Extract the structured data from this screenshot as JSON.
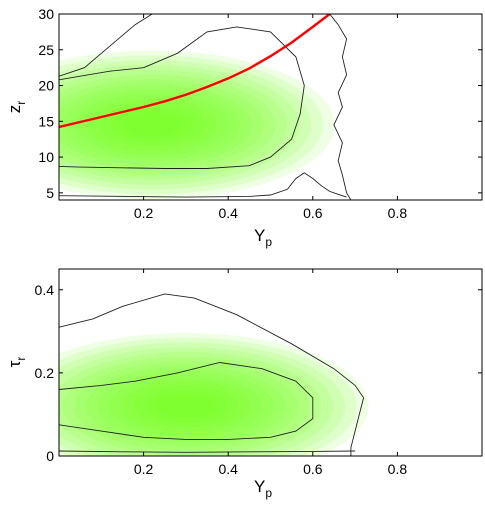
{
  "chart_data": [
    {
      "type": "heatmap",
      "xlabel": "Y",
      "xlabel_sub": "p",
      "ylabel": "z",
      "ylabel_sub": "r",
      "xlim": [
        0.0,
        1.0
      ],
      "ylim": [
        4,
        30
      ],
      "xticks": [
        0.2,
        0.4,
        0.6,
        0.8
      ],
      "xtick_labels": [
        "0.2",
        "0.4",
        "0.6",
        "0.8"
      ],
      "yticks": [
        5,
        10,
        15,
        20,
        25,
        30
      ],
      "ytick_labels": [
        "5",
        "10",
        "15",
        "20",
        "25",
        "30"
      ],
      "grid": false,
      "colors": {
        "density": "#66ff00",
        "contour": "#222222",
        "fit": "#ff0000"
      },
      "density_peak": {
        "x": 0.22,
        "y": 14.5
      },
      "contours": [
        [
          [
            0.0,
            8.7
          ],
          [
            0.05,
            8.6
          ],
          [
            0.15,
            8.5
          ],
          [
            0.25,
            8.4
          ],
          [
            0.35,
            8.4
          ],
          [
            0.45,
            8.8
          ],
          [
            0.5,
            10.0
          ],
          [
            0.55,
            12.5
          ],
          [
            0.57,
            16.0
          ],
          [
            0.58,
            20.0
          ],
          [
            0.56,
            24.0
          ],
          [
            0.5,
            27.5
          ],
          [
            0.42,
            28.2
          ],
          [
            0.35,
            27.5
          ],
          [
            0.28,
            24.5
          ],
          [
            0.2,
            22.5
          ],
          [
            0.12,
            22.0
          ],
          [
            0.05,
            21.3
          ],
          [
            0.0,
            20.8
          ]
        ],
        [
          [
            0.0,
            4.6
          ],
          [
            0.3,
            4.4
          ],
          [
            0.45,
            4.5
          ],
          [
            0.5,
            4.7
          ],
          [
            0.54,
            5.5
          ],
          [
            0.56,
            7.0
          ],
          [
            0.58,
            7.8
          ],
          [
            0.6,
            7.0
          ],
          [
            0.62,
            6.0
          ],
          [
            0.64,
            5.2
          ],
          [
            0.66,
            4.8
          ],
          [
            0.68,
            4.4
          ]
        ],
        [
          [
            0.0,
            21.3
          ],
          [
            0.06,
            22.5
          ],
          [
            0.11,
            25.0
          ],
          [
            0.18,
            28.5
          ],
          [
            0.22,
            30.0
          ]
        ],
        [
          [
            0.64,
            30.0
          ],
          [
            0.66,
            28.5
          ],
          [
            0.68,
            26.5
          ],
          [
            0.67,
            24.0
          ],
          [
            0.68,
            21.5
          ],
          [
            0.66,
            19.0
          ],
          [
            0.67,
            17.0
          ],
          [
            0.65,
            14.5
          ],
          [
            0.67,
            12.0
          ],
          [
            0.66,
            9.5
          ],
          [
            0.67,
            7.5
          ],
          [
            0.68,
            5.0
          ],
          [
            0.69,
            4.0
          ]
        ]
      ],
      "fit_curve": {
        "x": [
          0.0,
          0.05,
          0.1,
          0.15,
          0.2,
          0.25,
          0.3,
          0.35,
          0.4,
          0.45,
          0.5,
          0.55,
          0.6,
          0.64
        ],
        "y": [
          14.2,
          14.9,
          15.6,
          16.3,
          17.0,
          17.8,
          18.7,
          19.8,
          21.0,
          22.4,
          24.1,
          26.0,
          28.2,
          30.0
        ]
      }
    },
    {
      "type": "heatmap",
      "xlabel": "Y",
      "xlabel_sub": "p",
      "ylabel": "τ",
      "ylabel_sub": "r",
      "xlim": [
        0.0,
        1.0
      ],
      "ylim": [
        0.0,
        0.45
      ],
      "xticks": [
        0.2,
        0.4,
        0.6,
        0.8
      ],
      "xtick_labels": [
        "0.2",
        "0.4",
        "0.6",
        "0.8"
      ],
      "yticks": [
        0.0,
        0.2,
        0.4
      ],
      "ytick_labels": [
        "0",
        "0.2",
        "0.4"
      ],
      "grid": false,
      "colors": {
        "density": "#66ff00",
        "contour": "#222222"
      },
      "density_peak": {
        "x": 0.3,
        "y": 0.12
      },
      "contours": [
        [
          [
            0.0,
            0.075
          ],
          [
            0.1,
            0.06
          ],
          [
            0.2,
            0.045
          ],
          [
            0.3,
            0.04
          ],
          [
            0.4,
            0.04
          ],
          [
            0.5,
            0.045
          ],
          [
            0.56,
            0.06
          ],
          [
            0.6,
            0.09
          ],
          [
            0.6,
            0.14
          ],
          [
            0.56,
            0.18
          ],
          [
            0.48,
            0.21
          ],
          [
            0.38,
            0.225
          ],
          [
            0.28,
            0.2
          ],
          [
            0.18,
            0.18
          ],
          [
            0.1,
            0.17
          ],
          [
            0.0,
            0.16
          ]
        ],
        [
          [
            0.0,
            0.31
          ],
          [
            0.08,
            0.33
          ],
          [
            0.15,
            0.36
          ],
          [
            0.25,
            0.39
          ],
          [
            0.32,
            0.38
          ],
          [
            0.42,
            0.34
          ],
          [
            0.55,
            0.27
          ],
          [
            0.65,
            0.21
          ],
          [
            0.7,
            0.17
          ],
          [
            0.72,
            0.14
          ],
          [
            0.71,
            0.1
          ],
          [
            0.7,
            0.06
          ],
          [
            0.69,
            0.02
          ],
          [
            0.69,
            0.0
          ]
        ],
        [
          [
            0.0,
            0.012
          ],
          [
            0.15,
            0.01
          ],
          [
            0.3,
            0.009
          ],
          [
            0.45,
            0.01
          ],
          [
            0.6,
            0.011
          ],
          [
            0.7,
            0.012
          ]
        ]
      ]
    }
  ]
}
